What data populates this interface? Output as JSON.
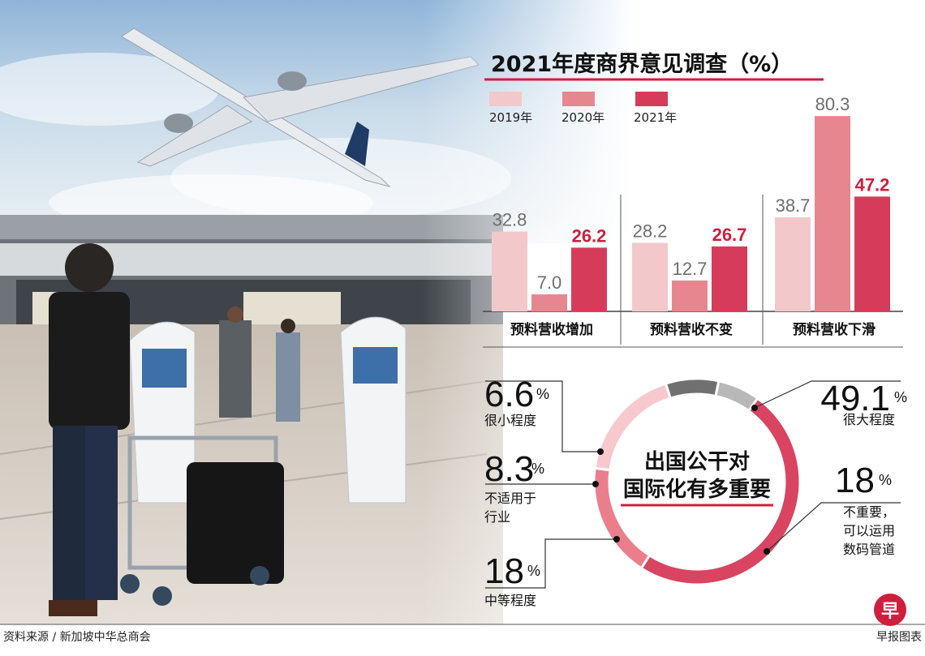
{
  "colors": {
    "y2019": "#f3c8cb",
    "y2020": "#e8868f",
    "y2021": "#d63c5a",
    "donut_large": "#d94561",
    "donut_medium": "#f7c9cf",
    "donut_small": "#b8b8b8",
    "donut_na": "#707070",
    "donut_unimportant": "#ea7f8b",
    "accent": "#cf1f3d"
  },
  "footer": {
    "source": "资料来源 / 新加坡中华总商会",
    "credit": "早报图表",
    "logo_char": "早"
  },
  "chart_data": [
    {
      "type": "bar",
      "title": "2021年度商界意见调查（%）",
      "categories": [
        "预料营收增加",
        "预料营收不变",
        "预料营收下滑"
      ],
      "series": [
        {
          "name": "2019年",
          "values": [
            32.8,
            28.2,
            38.7
          ]
        },
        {
          "name": "2020年",
          "values": [
            7.0,
            12.7,
            80.3
          ]
        },
        {
          "name": "2021年",
          "values": [
            26.2,
            26.7,
            47.2
          ]
        }
      ],
      "value_labels": [
        [
          "32.8",
          "7.0",
          "26.2"
        ],
        [
          "28.2",
          "12.7",
          "26.7"
        ],
        [
          "38.7",
          "80.3",
          "47.2"
        ]
      ],
      "ylim": [
        0,
        85
      ],
      "legend": "top"
    },
    {
      "type": "pie",
      "title_lines": [
        "出国公干对",
        "国际化有多重要"
      ],
      "unit": "%",
      "slices": [
        {
          "label": "很大程度",
          "value": 49.1,
          "display": "49.1"
        },
        {
          "label": "不重要，可以运用数码管道",
          "label_lines": [
            "不重要，",
            "可以运用",
            "数码管道"
          ],
          "value": 18,
          "display": "18"
        },
        {
          "label": "中等程度",
          "value": 18,
          "display": "18"
        },
        {
          "label": "不适用于行业",
          "label_lines": [
            "不适用于",
            "行业"
          ],
          "value": 8.3,
          "display": "8.3"
        },
        {
          "label": "很小程度",
          "value": 6.6,
          "display": "6.6"
        }
      ]
    }
  ]
}
